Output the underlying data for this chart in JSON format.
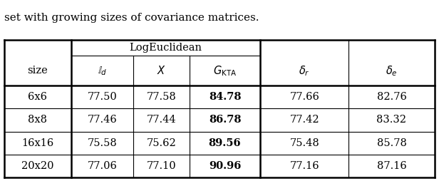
{
  "caption": "set with growing sizes of covariance matrices.",
  "rows": [
    [
      "6x6",
      "77.50",
      "77.58",
      "84.78",
      "77.66",
      "82.76"
    ],
    [
      "8x8",
      "77.46",
      "77.44",
      "86.78",
      "77.42",
      "83.32"
    ],
    [
      "16x16",
      "75.58",
      "75.62",
      "89.56",
      "75.48",
      "85.78"
    ],
    [
      "20x20",
      "77.06",
      "77.10",
      "90.96",
      "77.16",
      "87.16"
    ]
  ],
  "bold_col": 3,
  "background_color": "#ffffff",
  "caption_fontsize": 11,
  "cell_fontsize": 10.5,
  "header_fontsize": 10.5
}
